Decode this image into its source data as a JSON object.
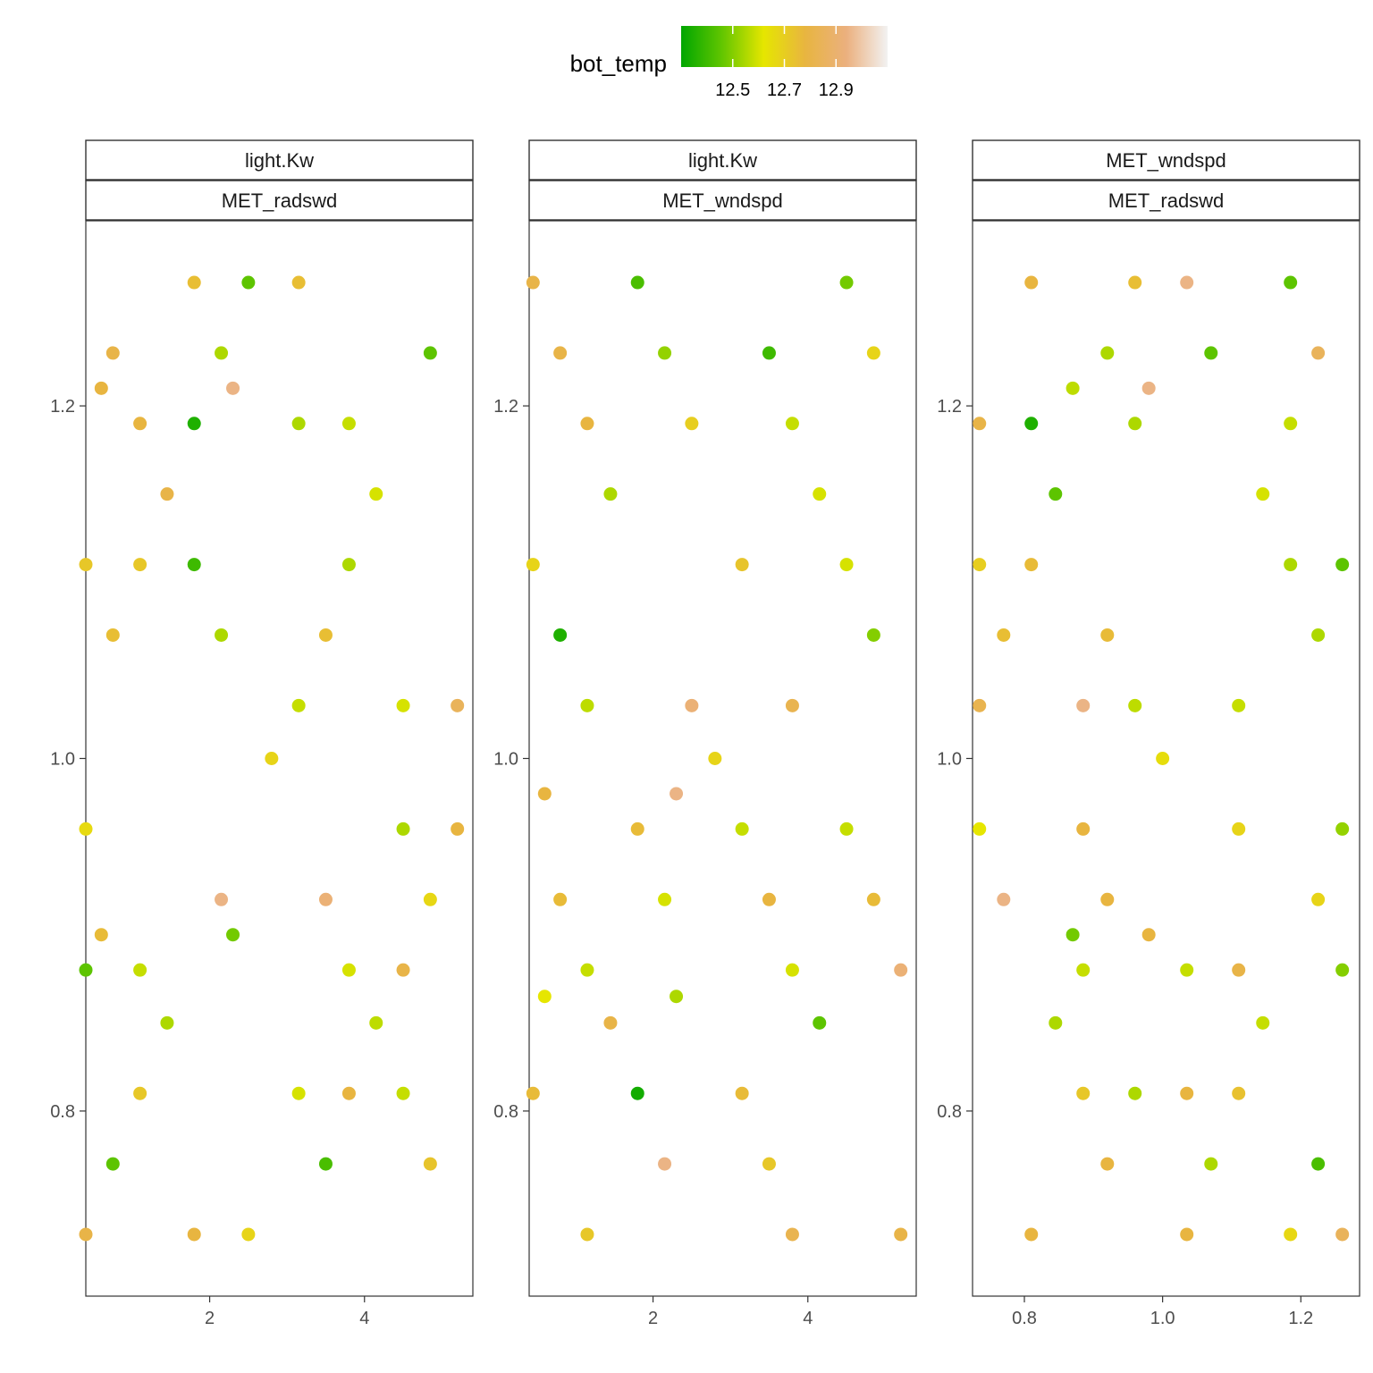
{
  "chart_data": [
    {
      "type": "scatter",
      "facet_top": "light.Kw",
      "facet_bottom": "MET_radswd",
      "xlim": [
        0.4,
        5.4
      ],
      "ylim": [
        0.695,
        1.305
      ],
      "x_ticks": [
        2,
        4
      ],
      "x_tick_labels": [
        "2",
        "4"
      ],
      "y_ticks": [
        0.8,
        1.0,
        1.2
      ],
      "y_tick_labels": [
        "0.8",
        "1.0",
        "1.2"
      ],
      "points": [
        {
          "x": 1.8,
          "y": 1.27,
          "c": 12.75
        },
        {
          "x": 2.5,
          "y": 1.27,
          "c": 12.45
        },
        {
          "x": 3.15,
          "y": 1.27,
          "c": 12.75
        },
        {
          "x": 0.75,
          "y": 1.23,
          "c": 12.8
        },
        {
          "x": 2.15,
          "y": 1.23,
          "c": 12.55
        },
        {
          "x": 4.85,
          "y": 1.23,
          "c": 12.45
        },
        {
          "x": 0.6,
          "y": 1.21,
          "c": 12.78
        },
        {
          "x": 2.3,
          "y": 1.21,
          "c": 12.95
        },
        {
          "x": 1.1,
          "y": 1.19,
          "c": 12.78
        },
        {
          "x": 1.8,
          "y": 1.19,
          "c": 12.35
        },
        {
          "x": 3.15,
          "y": 1.19,
          "c": 12.55
        },
        {
          "x": 3.8,
          "y": 1.19,
          "c": 12.58
        },
        {
          "x": 1.45,
          "y": 1.15,
          "c": 12.8
        },
        {
          "x": 4.15,
          "y": 1.15,
          "c": 12.6
        },
        {
          "x": 0.4,
          "y": 1.11,
          "c": 12.72
        },
        {
          "x": 1.1,
          "y": 1.11,
          "c": 12.72
        },
        {
          "x": 1.8,
          "y": 1.11,
          "c": 12.4
        },
        {
          "x": 3.8,
          "y": 1.11,
          "c": 12.55
        },
        {
          "x": 0.75,
          "y": 1.07,
          "c": 12.75
        },
        {
          "x": 2.15,
          "y": 1.07,
          "c": 12.55
        },
        {
          "x": 3.5,
          "y": 1.07,
          "c": 12.75
        },
        {
          "x": 3.15,
          "y": 1.03,
          "c": 12.58
        },
        {
          "x": 4.5,
          "y": 1.03,
          "c": 12.6
        },
        {
          "x": 5.2,
          "y": 1.03,
          "c": 12.85
        },
        {
          "x": 2.8,
          "y": 1.0,
          "c": 12.68
        },
        {
          "x": 0.4,
          "y": 0.96,
          "c": 12.66
        },
        {
          "x": 4.5,
          "y": 0.96,
          "c": 12.55
        },
        {
          "x": 5.2,
          "y": 0.96,
          "c": 12.78
        },
        {
          "x": 2.15,
          "y": 0.92,
          "c": 12.95
        },
        {
          "x": 3.5,
          "y": 0.92,
          "c": 12.92
        },
        {
          "x": 4.85,
          "y": 0.92,
          "c": 12.67
        },
        {
          "x": 0.6,
          "y": 0.9,
          "c": 12.76
        },
        {
          "x": 2.3,
          "y": 0.9,
          "c": 12.48
        },
        {
          "x": 0.4,
          "y": 0.88,
          "c": 12.45
        },
        {
          "x": 1.1,
          "y": 0.88,
          "c": 12.58
        },
        {
          "x": 3.8,
          "y": 0.88,
          "c": 12.6
        },
        {
          "x": 4.5,
          "y": 0.88,
          "c": 12.8
        },
        {
          "x": 1.45,
          "y": 0.85,
          "c": 12.55
        },
        {
          "x": 4.15,
          "y": 0.85,
          "c": 12.57
        },
        {
          "x": 1.1,
          "y": 0.81,
          "c": 12.72
        },
        {
          "x": 3.15,
          "y": 0.81,
          "c": 12.6
        },
        {
          "x": 3.8,
          "y": 0.81,
          "c": 12.78
        },
        {
          "x": 4.5,
          "y": 0.81,
          "c": 12.58
        },
        {
          "x": 0.75,
          "y": 0.77,
          "c": 12.45
        },
        {
          "x": 3.5,
          "y": 0.77,
          "c": 12.42
        },
        {
          "x": 4.85,
          "y": 0.77,
          "c": 12.73
        },
        {
          "x": 0.4,
          "y": 0.73,
          "c": 12.8
        },
        {
          "x": 1.8,
          "y": 0.73,
          "c": 12.78
        },
        {
          "x": 2.5,
          "y": 0.73,
          "c": 12.68
        }
      ]
    },
    {
      "type": "scatter",
      "facet_top": "light.Kw",
      "facet_bottom": "MET_wndspd",
      "xlim": [
        0.4,
        5.4
      ],
      "ylim": [
        0.695,
        1.305
      ],
      "x_ticks": [
        2,
        4
      ],
      "x_tick_labels": [
        "2",
        "4"
      ],
      "y_ticks": [
        0.8,
        1.0,
        1.2
      ],
      "y_tick_labels": [
        "0.8",
        "1.0",
        "1.2"
      ],
      "points": [
        {
          "x": 0.45,
          "y": 1.27,
          "c": 12.8
        },
        {
          "x": 1.8,
          "y": 1.27,
          "c": 12.42
        },
        {
          "x": 4.5,
          "y": 1.27,
          "c": 12.48
        },
        {
          "x": 0.8,
          "y": 1.23,
          "c": 12.8
        },
        {
          "x": 2.15,
          "y": 1.23,
          "c": 12.52
        },
        {
          "x": 3.5,
          "y": 1.23,
          "c": 12.4
        },
        {
          "x": 4.85,
          "y": 1.23,
          "c": 12.68
        },
        {
          "x": 1.15,
          "y": 1.19,
          "c": 12.78
        },
        {
          "x": 2.5,
          "y": 1.19,
          "c": 12.7
        },
        {
          "x": 3.8,
          "y": 1.19,
          "c": 12.58
        },
        {
          "x": 1.45,
          "y": 1.15,
          "c": 12.55
        },
        {
          "x": 4.15,
          "y": 1.15,
          "c": 12.6
        },
        {
          "x": 0.45,
          "y": 1.11,
          "c": 12.68
        },
        {
          "x": 3.15,
          "y": 1.11,
          "c": 12.73
        },
        {
          "x": 4.5,
          "y": 1.11,
          "c": 12.6
        },
        {
          "x": 0.8,
          "y": 1.07,
          "c": 12.35
        },
        {
          "x": 4.85,
          "y": 1.07,
          "c": 12.5
        },
        {
          "x": 1.15,
          "y": 1.03,
          "c": 12.57
        },
        {
          "x": 2.5,
          "y": 1.03,
          "c": 12.92
        },
        {
          "x": 3.8,
          "y": 1.03,
          "c": 12.82
        },
        {
          "x": 2.8,
          "y": 1.0,
          "c": 12.68
        },
        {
          "x": 0.6,
          "y": 0.98,
          "c": 12.78
        },
        {
          "x": 2.3,
          "y": 0.98,
          "c": 12.95
        },
        {
          "x": 1.8,
          "y": 0.96,
          "c": 12.76
        },
        {
          "x": 3.15,
          "y": 0.96,
          "c": 12.58
        },
        {
          "x": 4.5,
          "y": 0.96,
          "c": 12.58
        },
        {
          "x": 0.8,
          "y": 0.92,
          "c": 12.76
        },
        {
          "x": 2.15,
          "y": 0.92,
          "c": 12.6
        },
        {
          "x": 3.5,
          "y": 0.92,
          "c": 12.78
        },
        {
          "x": 4.85,
          "y": 0.92,
          "c": 12.76
        },
        {
          "x": 1.15,
          "y": 0.88,
          "c": 12.58
        },
        {
          "x": 3.8,
          "y": 0.88,
          "c": 12.6
        },
        {
          "x": 5.2,
          "y": 0.88,
          "c": 12.92
        },
        {
          "x": 0.6,
          "y": 0.865,
          "c": 12.62
        },
        {
          "x": 2.3,
          "y": 0.865,
          "c": 12.55
        },
        {
          "x": 1.45,
          "y": 0.85,
          "c": 12.8
        },
        {
          "x": 4.15,
          "y": 0.85,
          "c": 12.45
        },
        {
          "x": 0.45,
          "y": 0.81,
          "c": 12.76
        },
        {
          "x": 1.8,
          "y": 0.81,
          "c": 12.33
        },
        {
          "x": 3.15,
          "y": 0.81,
          "c": 12.76
        },
        {
          "x": 2.15,
          "y": 0.77,
          "c": 12.95
        },
        {
          "x": 3.5,
          "y": 0.77,
          "c": 12.72
        },
        {
          "x": 1.15,
          "y": 0.73,
          "c": 12.72
        },
        {
          "x": 3.8,
          "y": 0.73,
          "c": 12.82
        },
        {
          "x": 5.2,
          "y": 0.73,
          "c": 12.8
        }
      ]
    },
    {
      "type": "scatter",
      "facet_top": "MET_wndspd",
      "facet_bottom": "MET_radswd",
      "xlim": [
        0.725,
        1.285
      ],
      "ylim": [
        0.695,
        1.305
      ],
      "x_ticks": [
        0.8,
        1.0,
        1.2
      ],
      "x_tick_labels": [
        "0.8",
        "1.0",
        "1.2"
      ],
      "y_ticks": [
        0.8,
        1.0,
        1.2
      ],
      "y_tick_labels": [
        "0.8",
        "1.0",
        "1.2"
      ],
      "points": [
        {
          "x": 0.81,
          "y": 1.27,
          "c": 12.78
        },
        {
          "x": 0.96,
          "y": 1.27,
          "c": 12.75
        },
        {
          "x": 1.035,
          "y": 1.27,
          "c": 12.95
        },
        {
          "x": 1.185,
          "y": 1.27,
          "c": 12.45
        },
        {
          "x": 0.92,
          "y": 1.23,
          "c": 12.55
        },
        {
          "x": 1.07,
          "y": 1.23,
          "c": 12.45
        },
        {
          "x": 1.225,
          "y": 1.23,
          "c": 12.85
        },
        {
          "x": 0.87,
          "y": 1.21,
          "c": 12.57
        },
        {
          "x": 0.98,
          "y": 1.21,
          "c": 12.95
        },
        {
          "x": 0.735,
          "y": 1.19,
          "c": 12.8
        },
        {
          "x": 0.81,
          "y": 1.19,
          "c": 12.35
        },
        {
          "x": 0.96,
          "y": 1.19,
          "c": 12.55
        },
        {
          "x": 1.185,
          "y": 1.19,
          "c": 12.58
        },
        {
          "x": 0.845,
          "y": 1.15,
          "c": 12.45
        },
        {
          "x": 1.145,
          "y": 1.15,
          "c": 12.6
        },
        {
          "x": 0.735,
          "y": 1.11,
          "c": 12.7
        },
        {
          "x": 0.81,
          "y": 1.11,
          "c": 12.76
        },
        {
          "x": 1.185,
          "y": 1.11,
          "c": 12.55
        },
        {
          "x": 1.26,
          "y": 1.11,
          "c": 12.45
        },
        {
          "x": 0.77,
          "y": 1.07,
          "c": 12.75
        },
        {
          "x": 0.92,
          "y": 1.07,
          "c": 12.76
        },
        {
          "x": 1.225,
          "y": 1.07,
          "c": 12.55
        },
        {
          "x": 0.735,
          "y": 1.03,
          "c": 12.82
        },
        {
          "x": 0.885,
          "y": 1.03,
          "c": 12.95
        },
        {
          "x": 0.96,
          "y": 1.03,
          "c": 12.57
        },
        {
          "x": 1.11,
          "y": 1.03,
          "c": 12.58
        },
        {
          "x": 1.0,
          "y": 1.0,
          "c": 12.65
        },
        {
          "x": 0.735,
          "y": 0.96,
          "c": 12.62
        },
        {
          "x": 0.885,
          "y": 0.96,
          "c": 12.78
        },
        {
          "x": 1.11,
          "y": 0.96,
          "c": 12.68
        },
        {
          "x": 1.26,
          "y": 0.96,
          "c": 12.52
        },
        {
          "x": 0.77,
          "y": 0.92,
          "c": 12.95
        },
        {
          "x": 0.92,
          "y": 0.92,
          "c": 12.78
        },
        {
          "x": 1.225,
          "y": 0.92,
          "c": 12.68
        },
        {
          "x": 0.87,
          "y": 0.9,
          "c": 12.48
        },
        {
          "x": 0.98,
          "y": 0.9,
          "c": 12.78
        },
        {
          "x": 0.885,
          "y": 0.88,
          "c": 12.58
        },
        {
          "x": 1.035,
          "y": 0.88,
          "c": 12.58
        },
        {
          "x": 1.11,
          "y": 0.88,
          "c": 12.8
        },
        {
          "x": 1.26,
          "y": 0.88,
          "c": 12.5
        },
        {
          "x": 0.845,
          "y": 0.85,
          "c": 12.55
        },
        {
          "x": 1.145,
          "y": 0.85,
          "c": 12.58
        },
        {
          "x": 0.885,
          "y": 0.81,
          "c": 12.72
        },
        {
          "x": 0.96,
          "y": 0.81,
          "c": 12.55
        },
        {
          "x": 1.035,
          "y": 0.81,
          "c": 12.78
        },
        {
          "x": 1.11,
          "y": 0.81,
          "c": 12.74
        },
        {
          "x": 0.92,
          "y": 0.77,
          "c": 12.78
        },
        {
          "x": 1.07,
          "y": 0.77,
          "c": 12.55
        },
        {
          "x": 1.225,
          "y": 0.77,
          "c": 12.42
        },
        {
          "x": 0.81,
          "y": 0.73,
          "c": 12.78
        },
        {
          "x": 1.035,
          "y": 0.73,
          "c": 12.78
        },
        {
          "x": 1.185,
          "y": 0.73,
          "c": 12.67
        },
        {
          "x": 1.26,
          "y": 0.73,
          "c": 12.85
        }
      ]
    }
  ],
  "legend": {
    "title": "bot_temp",
    "position": "top",
    "range": [
      12.3,
      13.1
    ],
    "breaks": [
      12.5,
      12.7,
      12.9
    ],
    "break_labels": [
      "12.5",
      "12.7",
      "12.9"
    ],
    "colors": [
      "#00a600",
      "#63c600",
      "#e6e600",
      "#e8b540",
      "#ebb07e",
      "#f2f2f2"
    ]
  }
}
